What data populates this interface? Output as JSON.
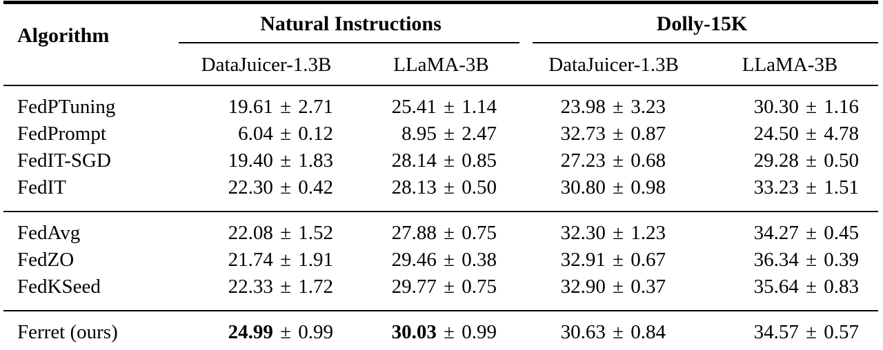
{
  "page": {
    "background": "#ffffff",
    "text_color": "#000000",
    "rule_color": "#000000"
  },
  "table": {
    "plus_minus": "±",
    "header": {
      "algorithm_label": "Algorithm",
      "groups": [
        {
          "label": "Natural Instructions",
          "sub_columns": [
            "DataJuicer-1.3B",
            "LLaMA-3B"
          ]
        },
        {
          "label": "Dolly-15K",
          "sub_columns": [
            "DataJuicer-1.3B",
            "LLaMA-3B"
          ]
        }
      ]
    },
    "row_groups": [
      {
        "rows": [
          {
            "algorithm": "FedPTuning",
            "values": [
              {
                "mean": "19.61",
                "std": "2.71",
                "bold": false
              },
              {
                "mean": "25.41",
                "std": "1.14",
                "bold": false
              },
              {
                "mean": "23.98",
                "std": "3.23",
                "bold": false
              },
              {
                "mean": "30.30",
                "std": "1.16",
                "bold": false
              }
            ]
          },
          {
            "algorithm": "FedPrompt",
            "values": [
              {
                "mean": "6.04",
                "std": "0.12",
                "bold": false
              },
              {
                "mean": "8.95",
                "std": "2.47",
                "bold": false
              },
              {
                "mean": "32.73",
                "std": "0.87",
                "bold": false
              },
              {
                "mean": "24.50",
                "std": "4.78",
                "bold": false
              }
            ]
          },
          {
            "algorithm": "FedIT-SGD",
            "values": [
              {
                "mean": "19.40",
                "std": "1.83",
                "bold": false
              },
              {
                "mean": "28.14",
                "std": "0.85",
                "bold": false
              },
              {
                "mean": "27.23",
                "std": "0.68",
                "bold": false
              },
              {
                "mean": "29.28",
                "std": "0.50",
                "bold": false
              }
            ]
          },
          {
            "algorithm": "FedIT",
            "values": [
              {
                "mean": "22.30",
                "std": "0.42",
                "bold": false
              },
              {
                "mean": "28.13",
                "std": "0.50",
                "bold": false
              },
              {
                "mean": "30.80",
                "std": "0.98",
                "bold": false
              },
              {
                "mean": "33.23",
                "std": "1.51",
                "bold": false
              }
            ]
          }
        ]
      },
      {
        "rows": [
          {
            "algorithm": "FedAvg",
            "values": [
              {
                "mean": "22.08",
                "std": "1.52",
                "bold": false
              },
              {
                "mean": "27.88",
                "std": "0.75",
                "bold": false
              },
              {
                "mean": "32.30",
                "std": "1.23",
                "bold": false
              },
              {
                "mean": "34.27",
                "std": "0.45",
                "bold": false
              }
            ]
          },
          {
            "algorithm": "FedZO",
            "values": [
              {
                "mean": "21.74",
                "std": "1.91",
                "bold": false
              },
              {
                "mean": "29.46",
                "std": "0.38",
                "bold": false
              },
              {
                "mean": "32.91",
                "std": "0.67",
                "bold": false
              },
              {
                "mean": "36.34",
                "std": "0.39",
                "bold": false
              }
            ]
          },
          {
            "algorithm": "FedKSeed",
            "values": [
              {
                "mean": "22.33",
                "std": "1.72",
                "bold": false
              },
              {
                "mean": "29.77",
                "std": "0.75",
                "bold": false
              },
              {
                "mean": "32.90",
                "std": "0.37",
                "bold": false
              },
              {
                "mean": "35.64",
                "std": "0.83",
                "bold": false
              }
            ]
          }
        ]
      },
      {
        "rows": [
          {
            "algorithm": "Ferret (ours)",
            "values": [
              {
                "mean": "24.99",
                "std": "0.99",
                "bold": true
              },
              {
                "mean": "30.03",
                "std": "0.99",
                "bold": true
              },
              {
                "mean": "30.63",
                "std": "0.84",
                "bold": false
              },
              {
                "mean": "34.57",
                "std": "0.57",
                "bold": false
              }
            ]
          }
        ]
      }
    ]
  }
}
